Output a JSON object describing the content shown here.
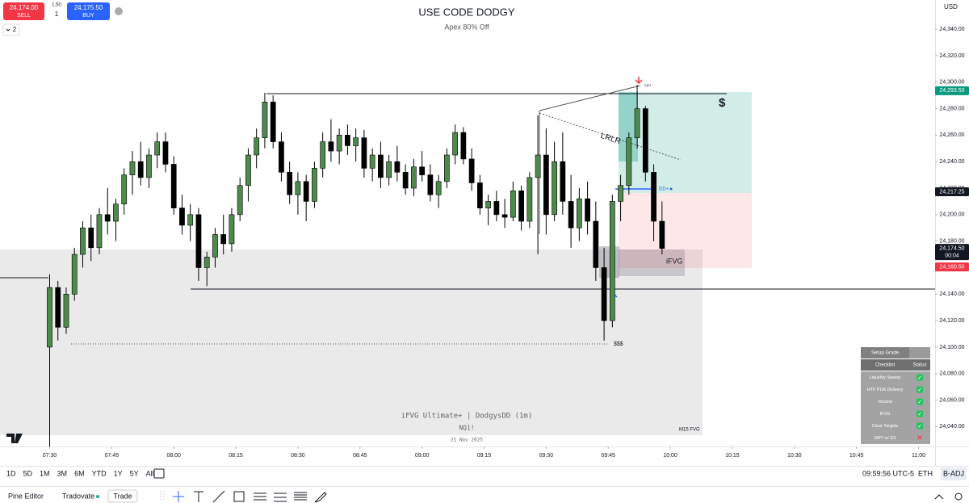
{
  "ui": {
    "sell_price": "24,174.00",
    "sell_label": "SELL",
    "buy_price": "24,175.50",
    "buy_label": "BUY",
    "spread": "1.50",
    "quantity": "1",
    "interval": "2",
    "currency": "USD"
  },
  "chart_data": {
    "type": "candlestick",
    "title": "USE CODE DODGY",
    "subtitle": "Apex 80% Off",
    "x": [
      "07:30",
      "07:32",
      "07:34",
      "07:36",
      "07:38",
      "07:40",
      "07:42",
      "07:44",
      "07:46",
      "07:48",
      "07:50",
      "07:52",
      "07:54",
      "07:56",
      "07:58",
      "08:00",
      "08:02",
      "08:04",
      "08:06",
      "08:08",
      "08:10",
      "08:12",
      "08:14",
      "08:16",
      "08:18",
      "08:20",
      "08:22",
      "08:24",
      "08:26",
      "08:28",
      "08:30",
      "08:32",
      "08:34",
      "08:36",
      "08:38",
      "08:40",
      "08:42",
      "08:44",
      "08:46",
      "08:48",
      "08:50",
      "08:52",
      "08:54",
      "08:56",
      "08:58",
      "09:00",
      "09:02",
      "09:04",
      "09:06",
      "09:08",
      "09:10",
      "09:12",
      "09:14",
      "09:16",
      "09:18",
      "09:20",
      "09:22",
      "09:24",
      "09:26",
      "09:28",
      "09:30",
      "09:32",
      "09:34",
      "09:36",
      "09:38",
      "09:40",
      "09:42",
      "09:44",
      "09:46",
      "09:48",
      "09:50",
      "09:52",
      "09:54",
      "09:56",
      "09:58"
    ],
    "open": [
      24100,
      24145,
      24115,
      24140,
      24170,
      24190,
      24175,
      24200,
      24195,
      24208,
      24230,
      24240,
      24228,
      24245,
      24255,
      24238,
      24205,
      24192,
      24200,
      24160,
      24168,
      24185,
      24178,
      24200,
      24222,
      24245,
      24258,
      24285,
      24255,
      24232,
      24215,
      24225,
      24210,
      24235,
      24255,
      24248,
      24260,
      24252,
      24258,
      24235,
      24245,
      24228,
      24240,
      24232,
      24220,
      24236,
      24230,
      24215,
      24225,
      24245,
      24262,
      24242,
      24224,
      24205,
      24210,
      24200,
      24198,
      24218,
      24195,
      24228,
      24245,
      24200,
      24240,
      24210,
      24190,
      24212,
      24195,
      24160,
      24120,
      24210,
      24222,
      24258,
      24280,
      24232,
      24195
    ],
    "high": [
      24155,
      24150,
      24145,
      24175,
      24195,
      24200,
      24205,
      24220,
      24212,
      24235,
      24248,
      24255,
      24250,
      24262,
      24262,
      24244,
      24215,
      24208,
      24205,
      24172,
      24190,
      24200,
      24205,
      24228,
      24250,
      24265,
      24292,
      24290,
      24262,
      24240,
      24232,
      24230,
      24240,
      24262,
      24272,
      24265,
      24268,
      24265,
      24264,
      24250,
      24255,
      24245,
      24252,
      24238,
      24242,
      24248,
      24238,
      24230,
      24250,
      24268,
      24266,
      24250,
      24230,
      24215,
      24218,
      24212,
      24225,
      24222,
      24232,
      24275,
      24265,
      24255,
      24262,
      24230,
      24220,
      24225,
      24210,
      24175,
      24215,
      24230,
      24262,
      24298,
      24282,
      24238,
      24210
    ],
    "low": [
      24024,
      24105,
      24110,
      24135,
      24160,
      24165,
      24170,
      24185,
      24180,
      24200,
      24215,
      24222,
      24220,
      24235,
      24232,
      24200,
      24185,
      24180,
      24150,
      24146,
      24160,
      24170,
      24172,
      24195,
      24210,
      24235,
      24250,
      24250,
      24225,
      24208,
      24200,
      24195,
      24205,
      24228,
      24240,
      24238,
      24245,
      24240,
      24228,
      24225,
      24220,
      24222,
      24225,
      24215,
      24214,
      24225,
      24210,
      24205,
      24220,
      24238,
      24238,
      24218,
      24200,
      24192,
      24195,
      24190,
      24195,
      24188,
      24190,
      24170,
      24185,
      24195,
      24200,
      24175,
      24180,
      24185,
      24150,
      24105,
      24115,
      24195,
      24215,
      24250,
      24225,
      24180,
      24170
    ],
    "close": [
      24145,
      24115,
      24140,
      24170,
      24190,
      24175,
      24200,
      24195,
      24208,
      24230,
      24240,
      24228,
      24245,
      24255,
      24238,
      24205,
      24192,
      24200,
      24160,
      24168,
      24185,
      24178,
      24200,
      24222,
      24245,
      24258,
      24285,
      24255,
      24232,
      24215,
      24225,
      24210,
      24235,
      24255,
      24248,
      24260,
      24252,
      24258,
      24235,
      24245,
      24228,
      24240,
      24232,
      24220,
      24236,
      24230,
      24215,
      24225,
      24245,
      24262,
      24242,
      24224,
      24205,
      24210,
      24200,
      24198,
      24218,
      24195,
      24228,
      24245,
      24200,
      24240,
      24210,
      24190,
      24212,
      24195,
      24160,
      24120,
      24210,
      24222,
      24258,
      24280,
      24232,
      24195,
      24174.5
    ],
    "up_color": "#4e8a4c",
    "down_color": "#000000",
    "xlim": [
      "07:18",
      "11:04"
    ],
    "xticks": [
      "07:30",
      "07:45",
      "08:00",
      "08:15",
      "08:30",
      "08:45",
      "09:00",
      "09:15",
      "09:30",
      "09:45",
      "10:00",
      "10:15",
      "10:30",
      "10:45",
      "11:00"
    ],
    "ylim": [
      24025,
      24362
    ],
    "yticks": [
      {
        "value": 24040,
        "label": "24,040.00"
      },
      {
        "value": 24060,
        "label": "24,060.00"
      },
      {
        "value": 24080,
        "label": "24,080.00"
      },
      {
        "value": 24100,
        "label": "24,100.00"
      },
      {
        "value": 24120,
        "label": "24,120.00"
      },
      {
        "value": 24140,
        "label": "24,140.00"
      },
      {
        "value": 24160,
        "label": "24,160.00"
      },
      {
        "value": 24180,
        "label": "24,180.00"
      },
      {
        "value": 24200,
        "label": "24,200.00"
      },
      {
        "value": 24220,
        "label": "24,220.00"
      },
      {
        "value": 24240,
        "label": "24,240.00"
      },
      {
        "value": 24260,
        "label": "24,260.00"
      },
      {
        "value": 24280,
        "label": "24,280.00"
      },
      {
        "value": 24300,
        "label": "24,300.00"
      },
      {
        "value": 24320,
        "label": "24,320.00"
      },
      {
        "value": 24340,
        "label": "24,340.00"
      }
    ],
    "grid": false,
    "price_tags": [
      {
        "value": 24293.5,
        "label": "24,293.50",
        "color": "#089981"
      },
      {
        "value": 24217.25,
        "label": "24,217.25",
        "color": "#131722"
      },
      {
        "value": 24174.5,
        "label": "24,174.50",
        "countdown": "00:04",
        "color": "#131722"
      },
      {
        "value": 24160.5,
        "label": "24,160.50",
        "color": "#f23645"
      }
    ],
    "annotations": {
      "target": "$",
      "lrlr": "LRLR",
      "dd": "DD+",
      "ifvg": "iFVG",
      "sss": "$$$",
      "smt": "SMT",
      "m15": "M15 FVG"
    },
    "watermark": {
      "indicator": "iFVG Ultimate+ | DodgysDD (1m)",
      "symbol": "NQ1!",
      "date": "21 Nov 2025"
    }
  },
  "checklist": {
    "title": "Setup Grade",
    "headers": [
      "Checklist",
      "Status"
    ],
    "rows": [
      {
        "label": "Liquidity Sweep",
        "status": "✓",
        "pass": true
      },
      {
        "label": "HTF PDA Delivery",
        "status": "✓",
        "pass": true
      },
      {
        "label": "Volume",
        "status": "✓",
        "pass": true
      },
      {
        "label": "IFVG",
        "status": "✓",
        "pass": true
      },
      {
        "label": "Clear Targets",
        "status": "✓",
        "pass": true
      },
      {
        "label": "SMT w/ ES",
        "status": "✕",
        "pass": false
      }
    ]
  },
  "toolbar": {
    "ranges": [
      "1D",
      "5D",
      "1M",
      "3M",
      "6M",
      "YTD",
      "1Y",
      "5Y",
      "All"
    ],
    "clock": "09:59:56 UTC-5",
    "session": "ETH",
    "adjust": "B-ADJ"
  },
  "bottom_bar": {
    "pine": "Pine Editor",
    "broker": "Tradovate",
    "trade": "Trade"
  }
}
